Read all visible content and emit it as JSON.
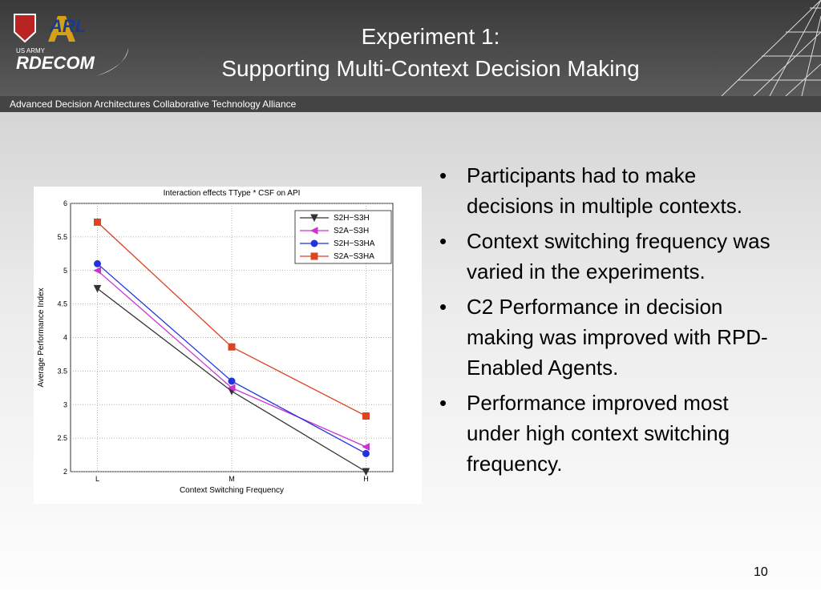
{
  "header": {
    "title_lines": [
      "Experiment 1:",
      "Supporting Multi-Context Decision Making"
    ],
    "band": "Advanced Decision Architectures Collaborative Technology Alliance"
  },
  "logos": {
    "army": "US ARMY",
    "rdecom": "RDECOM",
    "arl": "ARL"
  },
  "bullets": [
    "Participants had to make decisions in multiple contexts.",
    "Context switching frequency was varied in the experiments.",
    "C2 Performance in decision making was improved with RPD-Enabled Agents.",
    "Performance improved most under high context switching frequency."
  ],
  "page_number": "10",
  "chart_data": {
    "type": "line",
    "title": "Interaction effects TType * CSF on API",
    "x_label": "Context Switching Frequency",
    "y_label": "Average Performance Index",
    "categories": [
      "L",
      "M",
      "H"
    ],
    "series": [
      {
        "name": "S2H−S3H",
        "color": "#333333",
        "marker": "triangle-down",
        "values": [
          4.73,
          3.2,
          2.0
        ]
      },
      {
        "name": "S2A−S3H",
        "color": "#cc33cc",
        "marker": "triangle-left",
        "values": [
          5.0,
          3.25,
          2.37
        ]
      },
      {
        "name": "S2H−S3HA",
        "color": "#2233dd",
        "marker": "circle",
        "values": [
          5.1,
          3.35,
          2.27
        ]
      },
      {
        "name": "S2A−S3HA",
        "color": "#dd4422",
        "marker": "square",
        "values": [
          5.72,
          3.86,
          2.83
        ]
      }
    ],
    "ylim": [
      2,
      6
    ],
    "yticks": [
      2,
      2.5,
      3,
      3.5,
      4,
      4.5,
      5,
      5.5,
      6
    ],
    "grid": true,
    "legend": "upper right"
  }
}
